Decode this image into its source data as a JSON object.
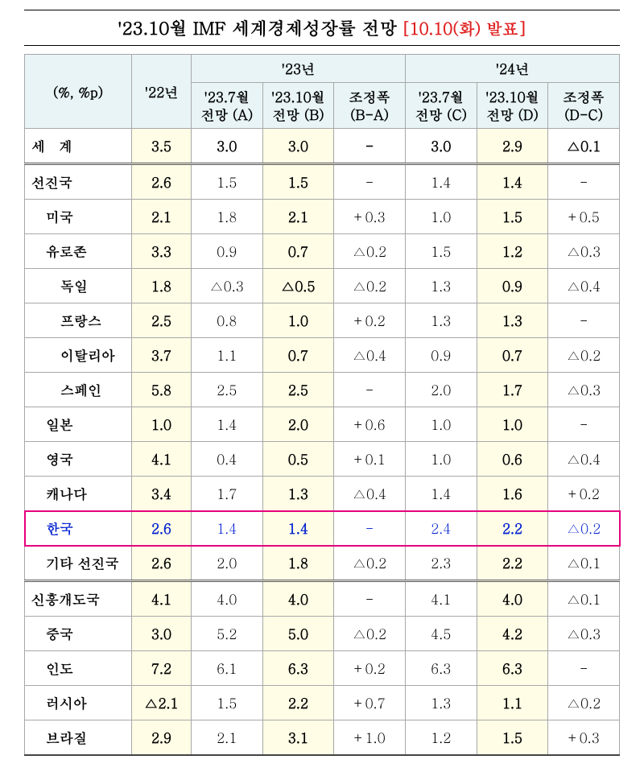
{
  "title": "'23.10월 IMF 세계경제성장률 전망",
  "title_note": "[10.10(화) 발표]",
  "style": {
    "type": "table",
    "highlight_color": "#e6007e",
    "highlight_text_color": "#0020d0",
    "title_note_color": "#e02020",
    "header_bg": "#e8f4f6",
    "emph_col_bg": "#fffde6",
    "border_color": "#a8a8a8",
    "font_family": "Malgun Gothic / Batang",
    "title_fontsize_pt": 17,
    "header_fontsize_pt": 13,
    "cell_fontsize_pt": 13
  },
  "header": {
    "unit": "(%, %p)",
    "y22": "'22년",
    "y23": "'23년",
    "y24": "'24년",
    "a": "'23.7월\n전망 (A)",
    "b": "'23.10월\n전망 (B)",
    "ba": "조정폭\n(B-A)",
    "c": "'23.7월\n전망 (C)",
    "d": "'23.10월\n전망 (D)",
    "dc": "조정폭\n(D-C)"
  },
  "rows": [
    {
      "name": "세　계",
      "y22": "3.5",
      "a": "3.0",
      "b": "3.0",
      "ba": "-",
      "c": "3.0",
      "d": "2.9",
      "dc": "△0.1",
      "indent": 0,
      "section": true,
      "world": true
    },
    {
      "name": "선진국",
      "y22": "2.6",
      "a": "1.5",
      "b": "1.5",
      "ba": "-",
      "c": "1.4",
      "d": "1.4",
      "dc": "-",
      "indent": 0,
      "section": true
    },
    {
      "name": "미국",
      "y22": "2.1",
      "a": "1.8",
      "b": "2.1",
      "ba": "+0.3",
      "c": "1.0",
      "d": "1.5",
      "dc": "+0.5",
      "indent": 1
    },
    {
      "name": "유로존",
      "y22": "3.3",
      "a": "0.9",
      "b": "0.7",
      "ba": "△0.2",
      "c": "1.5",
      "d": "1.2",
      "dc": "△0.3",
      "indent": 1
    },
    {
      "name": "독일",
      "y22": "1.8",
      "a": "△0.3",
      "b": "△0.5",
      "ba": "△0.2",
      "c": "1.3",
      "d": "0.9",
      "dc": "△0.4",
      "indent": 2
    },
    {
      "name": "프랑스",
      "y22": "2.5",
      "a": "0.8",
      "b": "1.0",
      "ba": "+0.2",
      "c": "1.3",
      "d": "1.3",
      "dc": "-",
      "indent": 2
    },
    {
      "name": "이탈리아",
      "y22": "3.7",
      "a": "1.1",
      "b": "0.7",
      "ba": "△0.4",
      "c": "0.9",
      "d": "0.7",
      "dc": "△0.2",
      "indent": 2
    },
    {
      "name": "스페인",
      "y22": "5.8",
      "a": "2.5",
      "b": "2.5",
      "ba": "-",
      "c": "2.0",
      "d": "1.7",
      "dc": "△0.3",
      "indent": 2
    },
    {
      "name": "일본",
      "y22": "1.0",
      "a": "1.4",
      "b": "2.0",
      "ba": "+0.6",
      "c": "1.0",
      "d": "1.0",
      "dc": "-",
      "indent": 1
    },
    {
      "name": "영국",
      "y22": "4.1",
      "a": "0.4",
      "b": "0.5",
      "ba": "+0.1",
      "c": "1.0",
      "d": "0.6",
      "dc": "△0.4",
      "indent": 1
    },
    {
      "name": "캐나다",
      "y22": "3.4",
      "a": "1.7",
      "b": "1.3",
      "ba": "△0.4",
      "c": "1.4",
      "d": "1.6",
      "dc": "+0.2",
      "indent": 1
    },
    {
      "name": "한국",
      "y22": "2.6",
      "a": "1.4",
      "b": "1.4",
      "ba": "-",
      "c": "2.4",
      "d": "2.2",
      "dc": "△0.2",
      "indent": 1,
      "highlight": true
    },
    {
      "name": "기타 선진국",
      "y22": "2.6",
      "a": "2.0",
      "b": "1.8",
      "ba": "△0.2",
      "c": "2.3",
      "d": "2.2",
      "dc": "△0.1",
      "indent": 1
    },
    {
      "name": "신흥개도국",
      "y22": "4.1",
      "a": "4.0",
      "b": "4.0",
      "ba": "-",
      "c": "4.1",
      "d": "4.0",
      "dc": "△0.1",
      "indent": 0,
      "section": true
    },
    {
      "name": "중국",
      "y22": "3.0",
      "a": "5.2",
      "b": "5.0",
      "ba": "△0.2",
      "c": "4.5",
      "d": "4.2",
      "dc": "△0.3",
      "indent": 1
    },
    {
      "name": "인도",
      "y22": "7.2",
      "a": "6.1",
      "b": "6.3",
      "ba": "+0.2",
      "c": "6.3",
      "d": "6.3",
      "dc": "-",
      "indent": 1
    },
    {
      "name": "러시아",
      "y22": "△2.1",
      "a": "1.5",
      "b": "2.2",
      "ba": "+0.7",
      "c": "1.3",
      "d": "1.1",
      "dc": "△0.2",
      "indent": 1
    },
    {
      "name": "브라질",
      "y22": "2.9",
      "a": "2.1",
      "b": "3.1",
      "ba": "+1.0",
      "c": "1.2",
      "d": "1.5",
      "dc": "+0.3",
      "indent": 1,
      "last": true
    }
  ]
}
